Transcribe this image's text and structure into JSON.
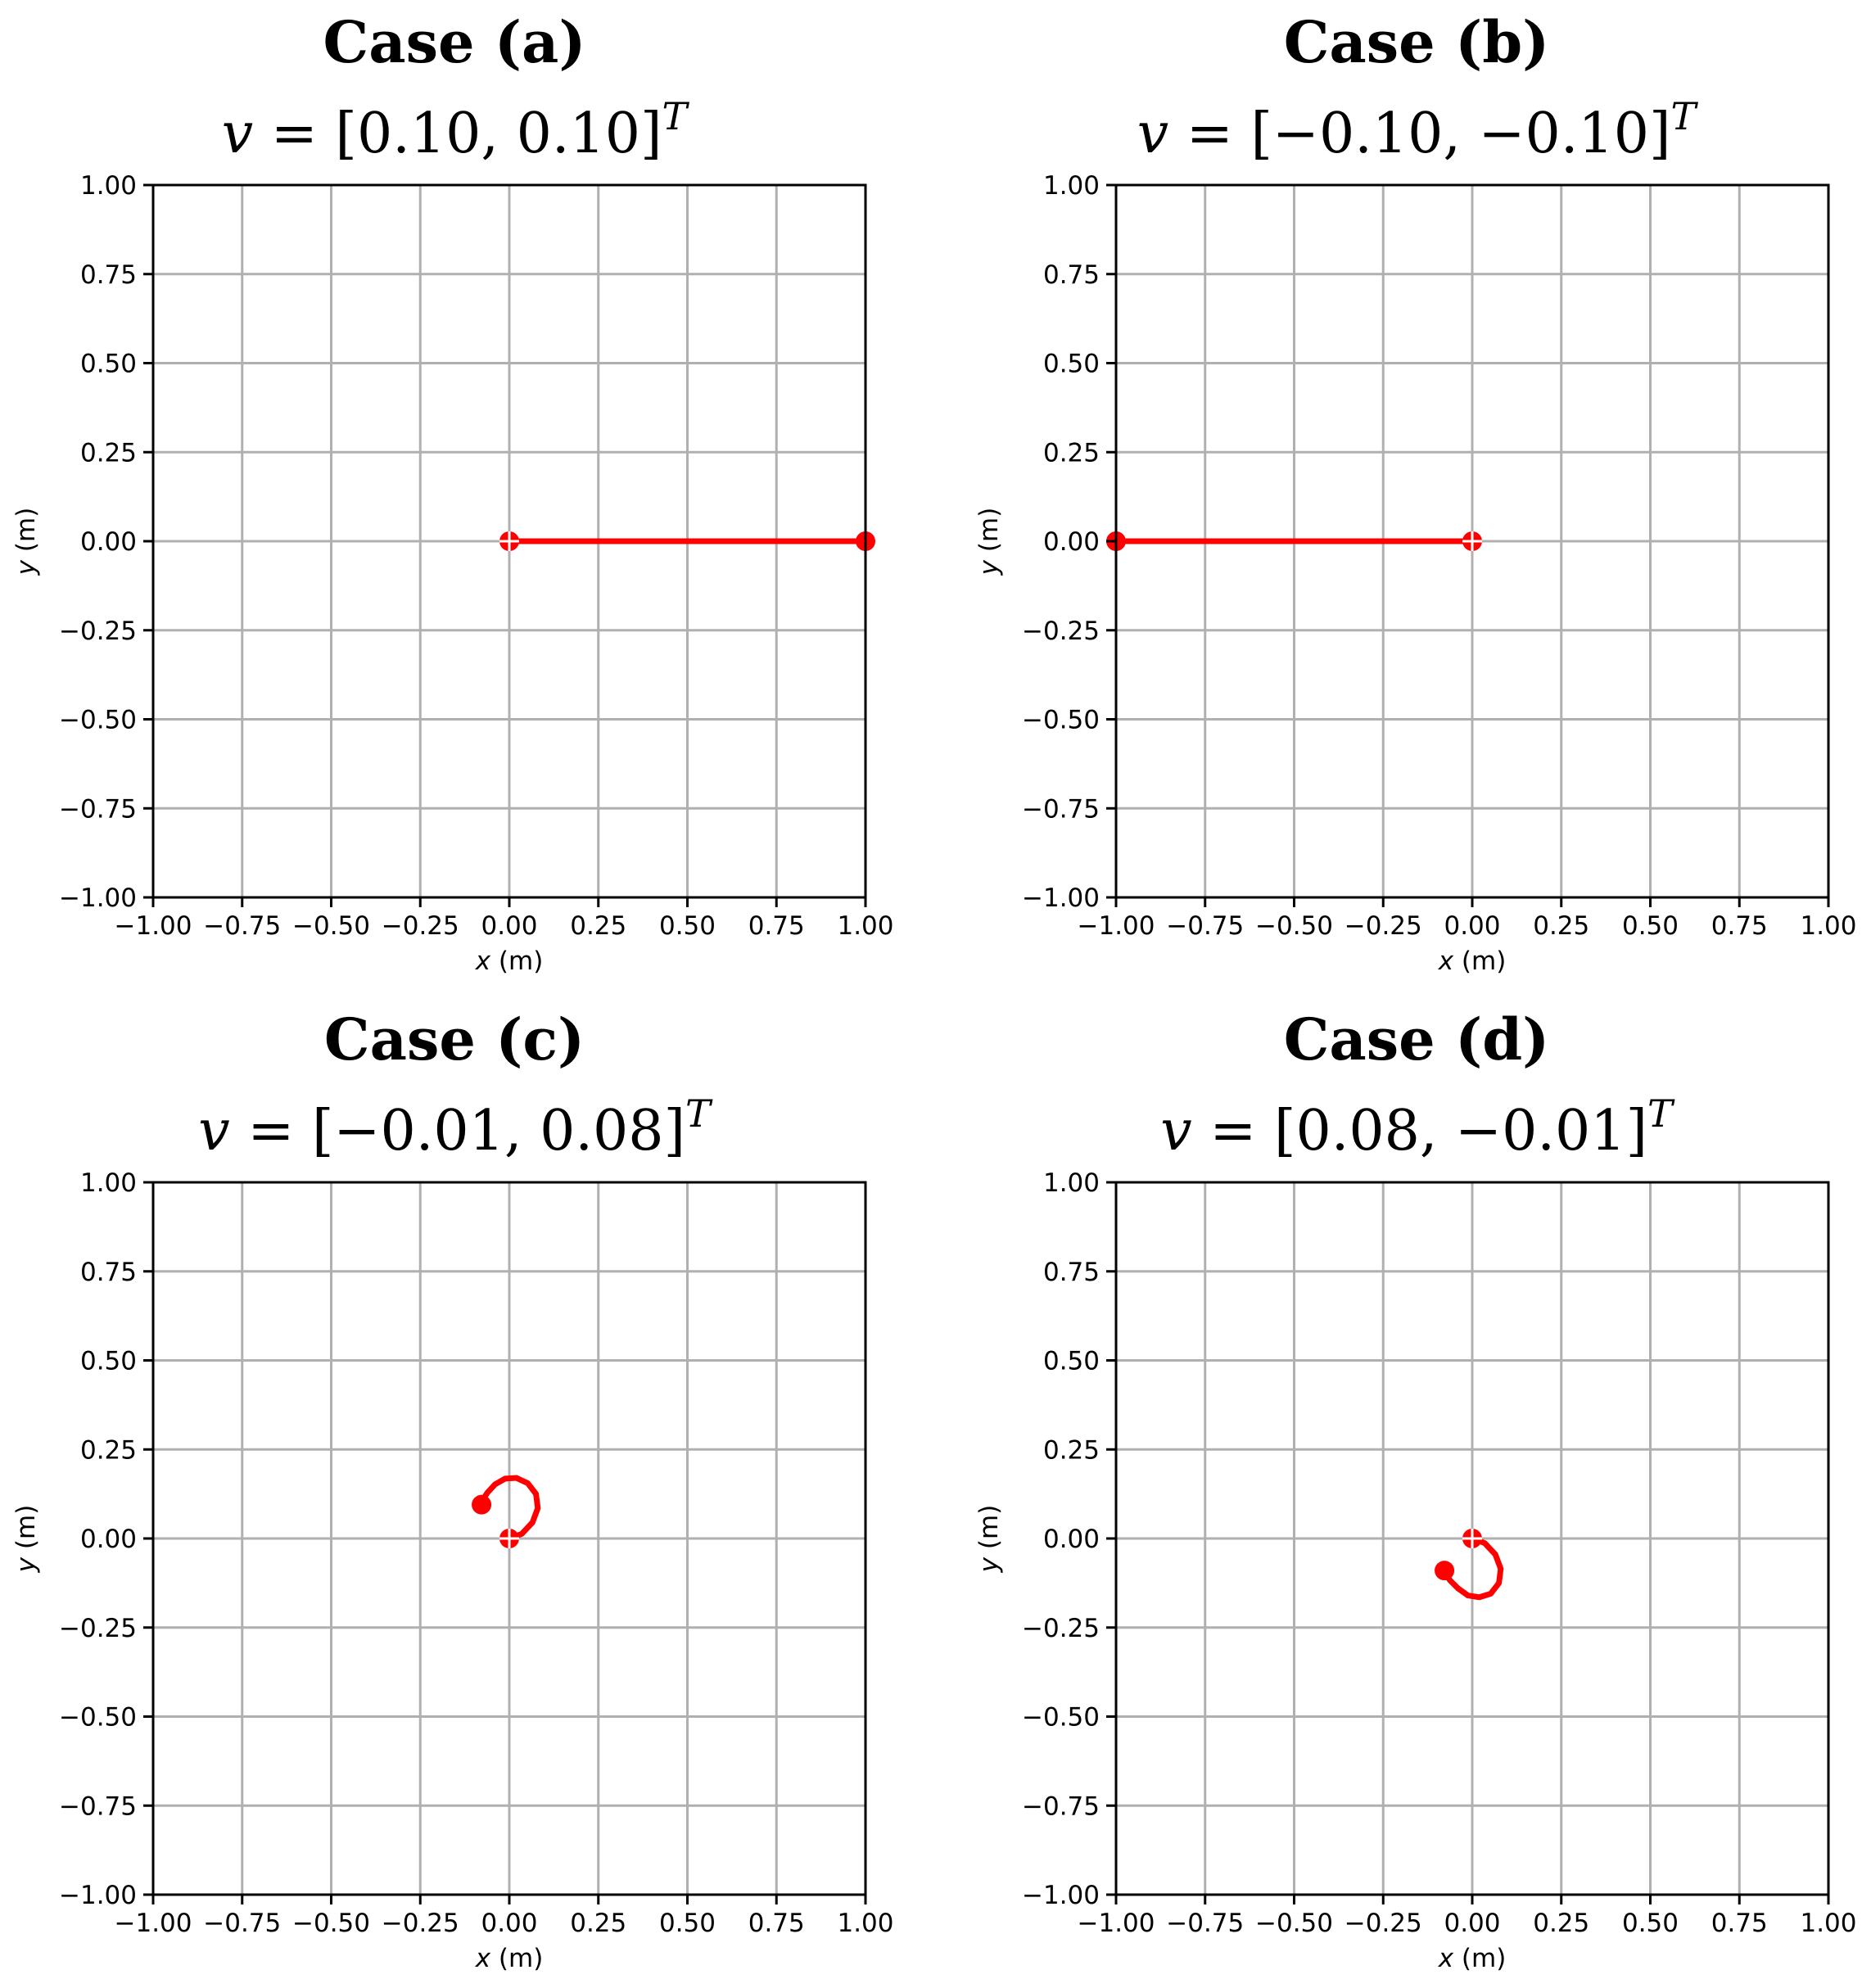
{
  "chart_data": [
    {
      "type": "line",
      "title": "Case (a)",
      "subtitle": {
        "var": "v",
        "vector": "[0.10,  0.10]",
        "sup": "T"
      },
      "xlabel": {
        "var": "x",
        "unit": " (m)"
      },
      "ylabel": {
        "var": "y",
        "unit": " (m)"
      },
      "xlim": [
        -1.0,
        1.0
      ],
      "ylim": [
        -1.0,
        1.0
      ],
      "ticks": [
        -1.0,
        -0.75,
        -0.5,
        -0.25,
        0.0,
        0.25,
        0.5,
        0.75,
        1.0
      ],
      "tick_labels": [
        "−1.00",
        "−0.75",
        "−0.50",
        "−0.25",
        "0.00",
        "0.25",
        "0.50",
        "0.75",
        "1.00"
      ],
      "grid": true,
      "color": "#ff0000",
      "trajectory": {
        "x": [
          0.0,
          1.0
        ],
        "y": [
          0.0,
          0.0
        ]
      },
      "start_marker": {
        "x": 0.0,
        "y": 0.0,
        "shape": "circle-plus"
      },
      "end_marker": {
        "x": 1.0,
        "y": 0.0,
        "shape": "dot"
      }
    },
    {
      "type": "line",
      "title": "Case (b)",
      "subtitle": {
        "var": "v",
        "vector": "[−0.10,  −0.10]",
        "sup": "T"
      },
      "xlabel": {
        "var": "x",
        "unit": " (m)"
      },
      "ylabel": {
        "var": "y",
        "unit": " (m)"
      },
      "xlim": [
        -1.0,
        1.0
      ],
      "ylim": [
        -1.0,
        1.0
      ],
      "ticks": [
        -1.0,
        -0.75,
        -0.5,
        -0.25,
        0.0,
        0.25,
        0.5,
        0.75,
        1.0
      ],
      "tick_labels": [
        "−1.00",
        "−0.75",
        "−0.50",
        "−0.25",
        "0.00",
        "0.25",
        "0.50",
        "0.75",
        "1.00"
      ],
      "grid": true,
      "color": "#ff0000",
      "trajectory": {
        "x": [
          0.0,
          -1.0
        ],
        "y": [
          0.0,
          0.0
        ]
      },
      "start_marker": {
        "x": 0.0,
        "y": 0.0,
        "shape": "circle-plus"
      },
      "end_marker": {
        "x": -1.0,
        "y": 0.0,
        "shape": "dot"
      }
    },
    {
      "type": "line",
      "title": "Case (c)",
      "subtitle": {
        "var": "v",
        "vector": "[−0.01,  0.08]",
        "sup": "T"
      },
      "xlabel": {
        "var": "x",
        "unit": " (m)"
      },
      "ylabel": {
        "var": "y",
        "unit": " (m)"
      },
      "xlim": [
        -1.0,
        1.0
      ],
      "ylim": [
        -1.0,
        1.0
      ],
      "ticks": [
        -1.0,
        -0.75,
        -0.5,
        -0.25,
        0.0,
        0.25,
        0.5,
        0.75,
        1.0
      ],
      "tick_labels": [
        "−1.00",
        "−0.75",
        "−0.50",
        "−0.25",
        "0.00",
        "0.25",
        "0.50",
        "0.75",
        "1.00"
      ],
      "grid": true,
      "color": "#ff0000",
      "trajectory": {
        "x": [
          0.0,
          0.035,
          0.065,
          0.08,
          0.075,
          0.052,
          0.02,
          -0.012,
          -0.04,
          -0.062,
          -0.075,
          -0.078
        ],
        "y": [
          0.0,
          0.013,
          0.045,
          0.085,
          0.125,
          0.155,
          0.17,
          0.168,
          0.152,
          0.128,
          0.108,
          0.095
        ]
      },
      "start_marker": {
        "x": 0.0,
        "y": 0.0,
        "shape": "circle-plus"
      },
      "end_marker": {
        "x": -0.078,
        "y": 0.095,
        "shape": "dot"
      }
    },
    {
      "type": "line",
      "title": "Case (d)",
      "subtitle": {
        "var": "v",
        "vector": "[0.08,  −0.01]",
        "sup": "T"
      },
      "xlabel": {
        "var": "x",
        "unit": " (m)"
      },
      "ylabel": {
        "var": "y",
        "unit": " (m)"
      },
      "xlim": [
        -1.0,
        1.0
      ],
      "ylim": [
        -1.0,
        1.0
      ],
      "ticks": [
        -1.0,
        -0.75,
        -0.5,
        -0.25,
        0.0,
        0.25,
        0.5,
        0.75,
        1.0
      ],
      "tick_labels": [
        "−1.00",
        "−0.75",
        "−0.50",
        "−0.25",
        "0.00",
        "0.25",
        "0.50",
        "0.75",
        "1.00"
      ],
      "grid": true,
      "color": "#ff0000",
      "trajectory": {
        "x": [
          0.0,
          0.035,
          0.065,
          0.08,
          0.075,
          0.052,
          0.02,
          -0.012,
          -0.04,
          -0.062,
          -0.075,
          -0.078
        ],
        "y": [
          0.0,
          -0.013,
          -0.045,
          -0.085,
          -0.125,
          -0.155,
          -0.165,
          -0.16,
          -0.14,
          -0.118,
          -0.1,
          -0.09
        ]
      },
      "start_marker": {
        "x": 0.0,
        "y": 0.0,
        "shape": "circle-plus"
      },
      "end_marker": {
        "x": -0.078,
        "y": -0.09,
        "shape": "dot"
      }
    }
  ]
}
